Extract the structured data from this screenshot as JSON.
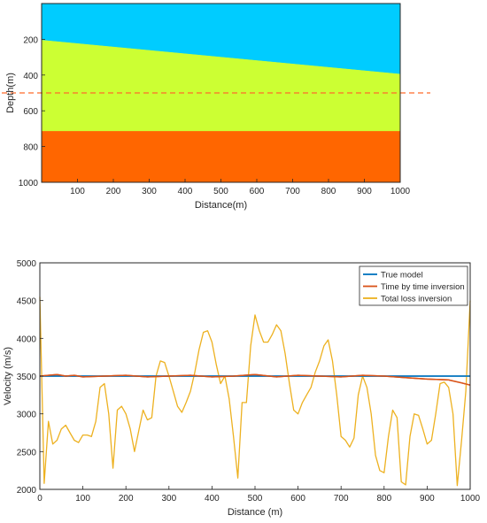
{
  "chart_data": [
    {
      "type": "heatmap",
      "xlabel": "Distance(m)",
      "ylabel": "Depth(m)",
      "xlim": [
        0,
        1000
      ],
      "ylim": [
        1000,
        0
      ],
      "xticks": [
        100,
        200,
        300,
        400,
        500,
        600,
        700,
        800,
        900,
        1000
      ],
      "yticks": [
        200,
        400,
        600,
        800,
        1000
      ],
      "layers": [
        {
          "name": "top",
          "color": "#00CCFF",
          "boundary_top": [
            [
              0,
              0
            ],
            [
              1000,
              0
            ]
          ],
          "boundary_bottom": [
            [
              0,
              205
            ],
            [
              1000,
              395
            ]
          ]
        },
        {
          "name": "middle",
          "color": "#CCFF33",
          "boundary_top": [
            [
              0,
              205
            ],
            [
              1000,
              395
            ]
          ],
          "boundary_bottom": [
            [
              0,
              715
            ],
            [
              1000,
              715
            ]
          ]
        },
        {
          "name": "bottom",
          "color": "#FF6600",
          "boundary_top": [
            [
              0,
              715
            ],
            [
              1000,
              715
            ]
          ],
          "boundary_bottom": [
            [
              0,
              1000
            ],
            [
              1000,
              1000
            ]
          ]
        }
      ],
      "reference_line": {
        "depth": 500,
        "color": "#FF6A2A",
        "style": "dashed"
      }
    },
    {
      "type": "line",
      "xlabel": "Distance (m)",
      "ylabel": "Velocity (m/s)",
      "xlim": [
        0,
        1000
      ],
      "ylim": [
        2000,
        5000
      ],
      "xticks": [
        0,
        100,
        200,
        300,
        400,
        500,
        600,
        700,
        800,
        900,
        1000
      ],
      "yticks": [
        2000,
        2500,
        3000,
        3500,
        4000,
        4500,
        5000
      ],
      "grid": false,
      "legend_position": "top-right",
      "series": [
        {
          "name": "True model",
          "color": "#0072BD",
          "x": [
            0,
            1000
          ],
          "y": [
            3500,
            3500
          ]
        },
        {
          "name": "Time by time inversion",
          "color": "#D95319",
          "x": [
            0,
            20,
            40,
            60,
            80,
            100,
            150,
            200,
            250,
            300,
            350,
            400,
            450,
            500,
            550,
            600,
            650,
            700,
            750,
            800,
            850,
            900,
            950,
            980,
            1000
          ],
          "y": [
            3500,
            3510,
            3520,
            3500,
            3510,
            3490,
            3500,
            3510,
            3490,
            3500,
            3510,
            3490,
            3500,
            3520,
            3490,
            3510,
            3500,
            3490,
            3510,
            3500,
            3480,
            3460,
            3450,
            3410,
            3380
          ]
        },
        {
          "name": "Total loss inversion",
          "color": "#EDB120",
          "x": [
            0,
            10,
            20,
            30,
            40,
            50,
            60,
            70,
            80,
            90,
            100,
            110,
            120,
            130,
            140,
            150,
            160,
            170,
            180,
            190,
            200,
            210,
            220,
            230,
            240,
            250,
            260,
            270,
            280,
            290,
            300,
            310,
            320,
            330,
            340,
            350,
            360,
            370,
            380,
            390,
            400,
            410,
            420,
            430,
            440,
            450,
            460,
            470,
            480,
            490,
            500,
            510,
            520,
            530,
            540,
            550,
            560,
            570,
            580,
            590,
            600,
            610,
            620,
            630,
            640,
            650,
            660,
            670,
            680,
            690,
            700,
            710,
            720,
            730,
            740,
            750,
            760,
            770,
            780,
            790,
            800,
            810,
            820,
            830,
            840,
            850,
            860,
            870,
            880,
            890,
            900,
            910,
            920,
            930,
            940,
            950,
            960,
            970,
            980,
            990,
            1000
          ],
          "y": [
            4550,
            2080,
            2900,
            2600,
            2650,
            2800,
            2850,
            2750,
            2650,
            2620,
            2720,
            2720,
            2700,
            2900,
            3350,
            3400,
            3000,
            2280,
            3050,
            3100,
            3000,
            2800,
            2500,
            2780,
            3050,
            2920,
            2950,
            3500,
            3700,
            3680,
            3500,
            3300,
            3100,
            3020,
            3150,
            3300,
            3550,
            3850,
            4080,
            4100,
            3950,
            3650,
            3400,
            3500,
            3200,
            2700,
            2150,
            3150,
            3150,
            3900,
            4310,
            4100,
            3950,
            3950,
            4050,
            4180,
            4100,
            3800,
            3400,
            3050,
            3000,
            3150,
            3250,
            3350,
            3550,
            3700,
            3900,
            3980,
            3700,
            3250,
            2700,
            2650,
            2560,
            2680,
            3250,
            3500,
            3350,
            3000,
            2450,
            2250,
            2220,
            2700,
            3050,
            2950,
            2100,
            2060,
            2700,
            3000,
            2980,
            2800,
            2600,
            2650,
            3000,
            3400,
            3420,
            3350,
            3000,
            2050,
            2650,
            3300,
            4500
          ]
        }
      ]
    }
  ]
}
